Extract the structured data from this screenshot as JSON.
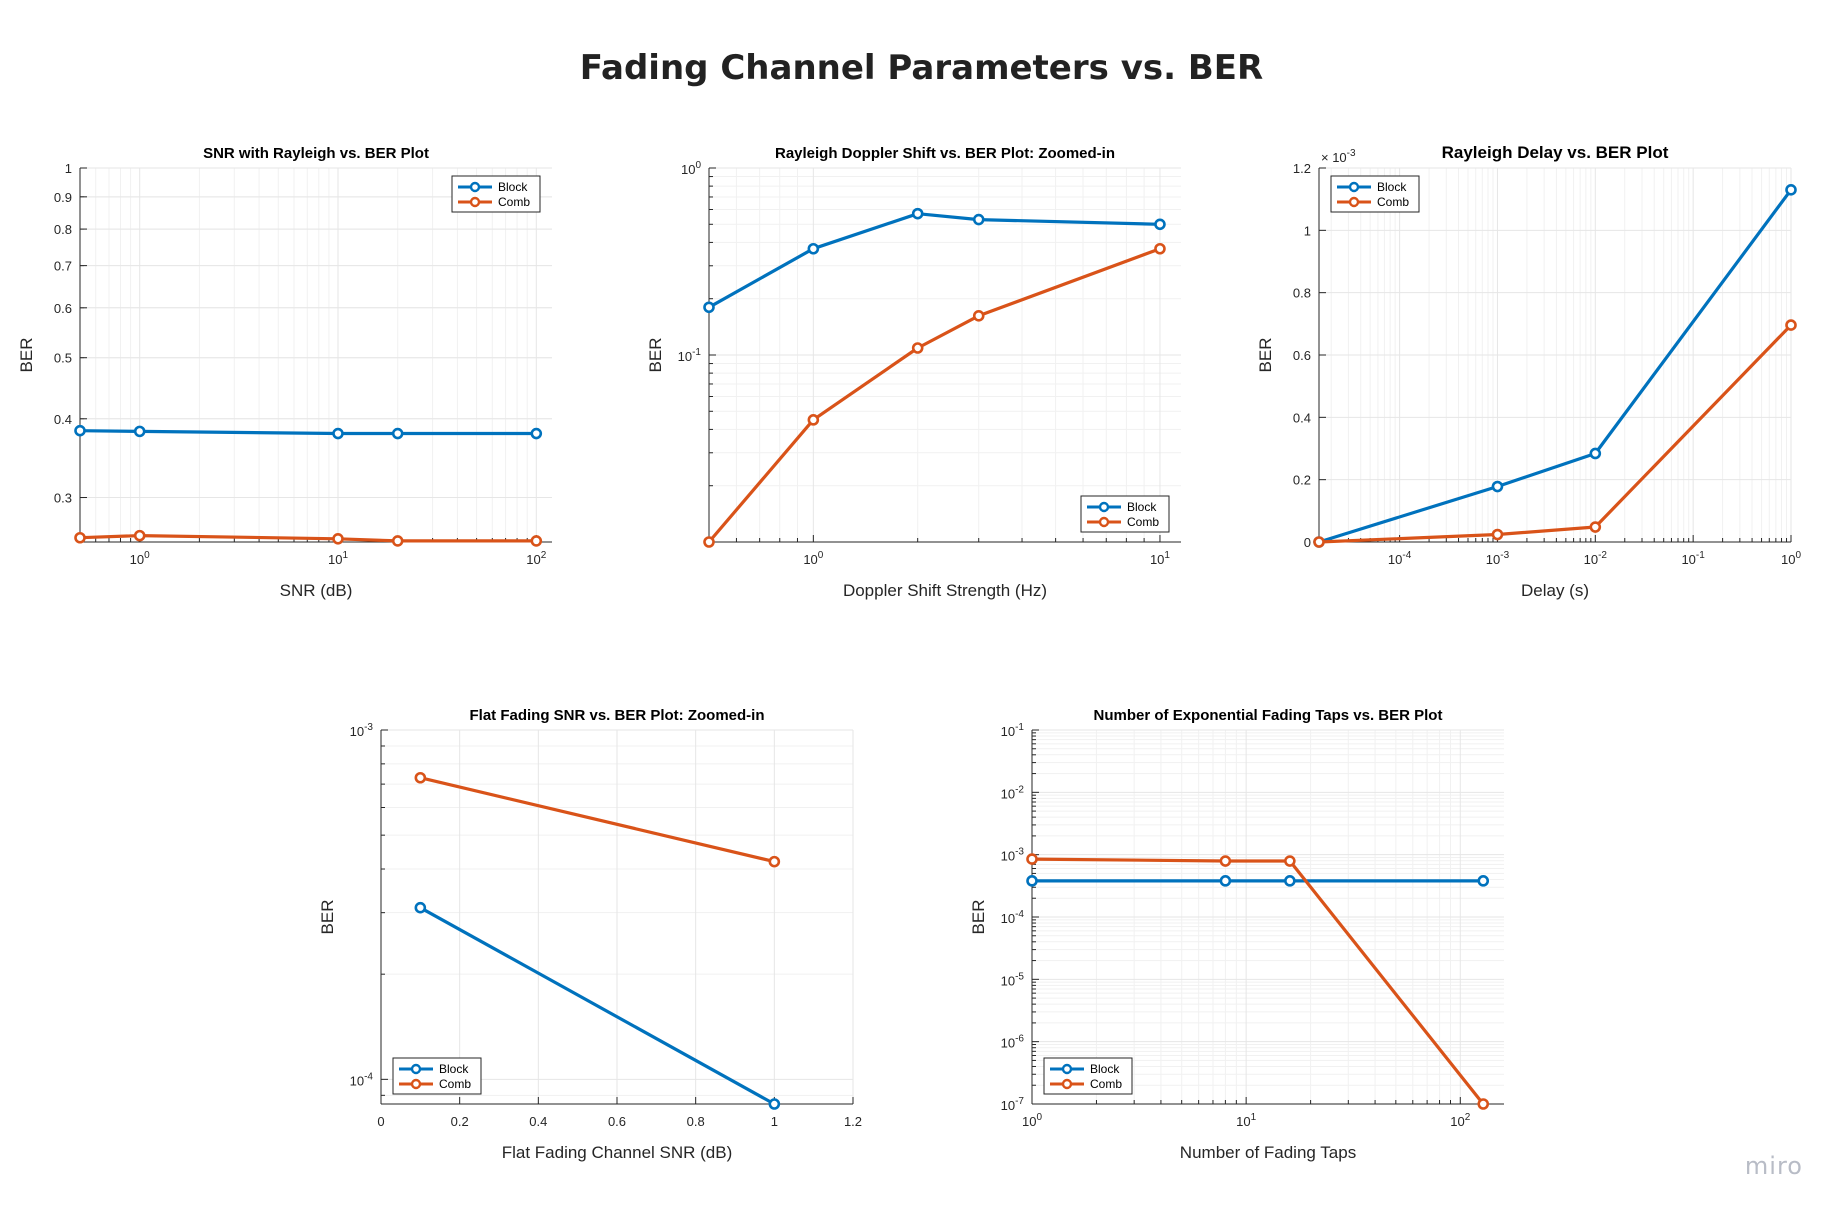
{
  "page": {
    "title": "Fading Channel Parameters vs. BER",
    "watermark": "miro"
  },
  "colors": {
    "block": "#0072BD",
    "comb": "#D95319",
    "grid": "#e6e6e6",
    "axis": "#262626"
  },
  "chart_data": [
    {
      "type": "line",
      "title": "SNR with Rayleigh vs. BER Plot",
      "xlabel": "SNR (dB)",
      "ylabel": "BER",
      "xscale": "log",
      "yscale": "log",
      "xlim": [
        0.5,
        120
      ],
      "ylim": [
        0.255,
        1.0
      ],
      "xticks": [
        {
          "v": 1,
          "b": "10",
          "e": "0"
        },
        {
          "v": 10,
          "b": "10",
          "e": "1"
        },
        {
          "v": 100,
          "b": "10",
          "e": "2"
        }
      ],
      "yticks": [
        {
          "v": 0.3,
          "t": "0.3"
        },
        {
          "v": 0.4,
          "t": "0.4"
        },
        {
          "v": 0.5,
          "t": "0.5"
        },
        {
          "v": 0.6,
          "t": "0.6"
        },
        {
          "v": 0.7,
          "t": "0.7"
        },
        {
          "v": 0.8,
          "t": "0.8"
        },
        {
          "v": 0.9,
          "t": "0.9"
        },
        {
          "v": 1.0,
          "t": "1"
        }
      ],
      "grid": true,
      "legend": "top-right",
      "series": [
        {
          "name": "Block",
          "x": [
            0.5,
            1,
            10,
            20,
            100
          ],
          "y": [
            0.383,
            0.382,
            0.379,
            0.379,
            0.379
          ]
        },
        {
          "name": "Comb",
          "x": [
            0.5,
            1,
            10,
            20,
            100
          ],
          "y": [
            0.259,
            0.261,
            0.258,
            0.256,
            0.256
          ]
        }
      ]
    },
    {
      "type": "line",
      "title": "Rayleigh Doppler Shift vs. BER Plot: Zoomed-in",
      "xlabel": "Doppler Shift Strength (Hz)",
      "ylabel": "BER",
      "xscale": "log",
      "yscale": "log",
      "xlim": [
        0.5,
        11.5
      ],
      "ylim": [
        0.01,
        1.0
      ],
      "xticks": [
        {
          "v": 1,
          "b": "10",
          "e": "0"
        },
        {
          "v": 10,
          "b": "10",
          "e": "1"
        }
      ],
      "yticks": [
        {
          "v": 0.1,
          "b": "10",
          "e": "-1"
        },
        {
          "v": 1,
          "b": "10",
          "e": "0"
        }
      ],
      "grid": true,
      "legend": "bottom-right",
      "series": [
        {
          "name": "Block",
          "x": [
            0.5,
            1,
            2,
            3,
            10
          ],
          "y": [
            0.18,
            0.37,
            0.57,
            0.53,
            0.5
          ]
        },
        {
          "name": "Comb",
          "x": [
            0.5,
            1,
            2,
            3,
            10
          ],
          "y": [
            0.01,
            0.045,
            0.109,
            0.162,
            0.37
          ]
        }
      ]
    },
    {
      "type": "line",
      "title": "Rayleigh Delay vs. BER Plot",
      "xlabel": "Delay (s)",
      "ylabel": "BER",
      "xscale": "log",
      "yscale": "linear",
      "xlim": [
        1.5e-05,
        1.0
      ],
      "ylim": [
        0,
        0.0012
      ],
      "xticks": [
        {
          "v": 0.0001,
          "b": "10",
          "e": "-4"
        },
        {
          "v": 0.001,
          "b": "10",
          "e": "-3"
        },
        {
          "v": 0.01,
          "b": "10",
          "e": "-2"
        },
        {
          "v": 0.1,
          "b": "10",
          "e": "-1"
        },
        {
          "v": 1,
          "b": "10",
          "e": "0"
        }
      ],
      "yticks": [
        {
          "v": 0,
          "t": "0"
        },
        {
          "v": 0.0002,
          "t": "0.2"
        },
        {
          "v": 0.0004,
          "t": "0.4"
        },
        {
          "v": 0.0006,
          "t": "0.6"
        },
        {
          "v": 0.0008,
          "t": "0.8"
        },
        {
          "v": 0.001,
          "t": "1"
        },
        {
          "v": 0.0012,
          "t": "1.2"
        }
      ],
      "yexponent": {
        "b": "× 10",
        "e": "-3"
      },
      "grid": true,
      "legend": "top-left",
      "series": [
        {
          "name": "Block",
          "x": [
            1.5e-05,
            0.001,
            0.01,
            1
          ],
          "y": [
            0,
            0.000178,
            0.000284,
            0.00113
          ]
        },
        {
          "name": "Comb",
          "x": [
            1.5e-05,
            0.001,
            0.01,
            1
          ],
          "y": [
            0,
            2.4e-05,
            4.8e-05,
            0.000696
          ]
        }
      ]
    },
    {
      "type": "line",
      "title": "Flat Fading SNR vs. BER Plot: Zoomed-in",
      "xlabel": "Flat Fading Channel SNR (dB)",
      "ylabel": "BER",
      "xscale": "linear",
      "yscale": "log",
      "xlim": [
        0,
        1.2
      ],
      "ylim": [
        8.5e-05,
        0.001
      ],
      "xticks": [
        {
          "v": 0,
          "t": "0"
        },
        {
          "v": 0.2,
          "t": "0.2"
        },
        {
          "v": 0.4,
          "t": "0.4"
        },
        {
          "v": 0.6,
          "t": "0.6"
        },
        {
          "v": 0.8,
          "t": "0.8"
        },
        {
          "v": 1,
          "t": "1"
        },
        {
          "v": 1.2,
          "t": "1.2"
        }
      ],
      "yticks": [
        {
          "v": 0.0001,
          "b": "10",
          "e": "-4"
        },
        {
          "v": 0.001,
          "b": "10",
          "e": "-3"
        }
      ],
      "grid": true,
      "legend": "bottom-left",
      "series": [
        {
          "name": "Block",
          "x": [
            0.1,
            1
          ],
          "y": [
            0.00031,
            8.5e-05
          ]
        },
        {
          "name": "Comb",
          "x": [
            0.1,
            1
          ],
          "y": [
            0.00073,
            0.00042
          ]
        }
      ]
    },
    {
      "type": "line",
      "title": "Number of Exponential Fading Taps vs. BER Plot",
      "xlabel": "Number of Fading Taps",
      "ylabel": "BER",
      "xscale": "log",
      "yscale": "log",
      "xlim": [
        1,
        160
      ],
      "ylim": [
        1e-07,
        0.1
      ],
      "xticks": [
        {
          "v": 1,
          "b": "10",
          "e": "0"
        },
        {
          "v": 10,
          "b": "10",
          "e": "1"
        },
        {
          "v": 100,
          "b": "10",
          "e": "2"
        }
      ],
      "yticks": [
        {
          "v": 1e-07,
          "b": "10",
          "e": "-7"
        },
        {
          "v": 1e-06,
          "b": "10",
          "e": "-6"
        },
        {
          "v": 1e-05,
          "b": "10",
          "e": "-5"
        },
        {
          "v": 0.0001,
          "b": "10",
          "e": "-4"
        },
        {
          "v": 0.001,
          "b": "10",
          "e": "-3"
        },
        {
          "v": 0.01,
          "b": "10",
          "e": "-2"
        },
        {
          "v": 0.1,
          "b": "10",
          "e": "-1"
        }
      ],
      "grid": true,
      "legend": "bottom-left",
      "series": [
        {
          "name": "Block",
          "x": [
            1,
            8,
            16,
            128
          ],
          "y": [
            0.00038,
            0.00038,
            0.00038,
            0.00038
          ]
        },
        {
          "name": "Comb",
          "x": [
            1,
            8,
            16,
            128
          ],
          "y": [
            0.00085,
            0.00079,
            0.00079,
            1e-07
          ]
        }
      ]
    }
  ]
}
